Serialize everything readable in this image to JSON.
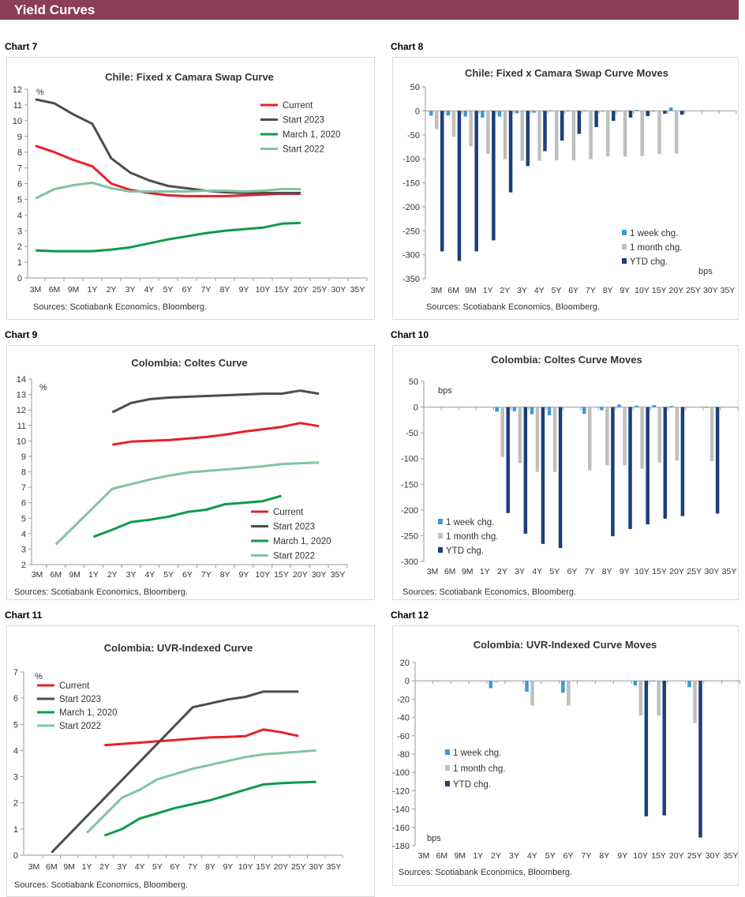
{
  "header": {
    "title": "Yield Curves"
  },
  "colors": {
    "header_bg": "#8b3f56",
    "current": "#e8202a",
    "start_2023": "#4d4d4d",
    "march_2020": "#0f9a4a",
    "start_2022": "#7fc6a0",
    "week": "#3a9bd5",
    "month": "#bfbfbf",
    "ytd": "#1c3f7a"
  },
  "chart_data": [
    {
      "label": "Chart 7",
      "title": "Chile: Fixed x Camara Swap Curve",
      "type": "line",
      "ylabel": "%",
      "source": "Sources: Scotiabank Economics, Bloomberg.",
      "ylim": [
        0,
        12
      ],
      "yticks": [
        0,
        1,
        2,
        3,
        4,
        5,
        6,
        7,
        8,
        9,
        10,
        11,
        12
      ],
      "legend": "top-right",
      "grid": false,
      "categories": [
        "3M",
        "6M",
        "9M",
        "1Y",
        "2Y",
        "3Y",
        "4Y",
        "5Y",
        "6Y",
        "7Y",
        "8Y",
        "9Y",
        "10Y",
        "15Y",
        "20Y",
        "25Y",
        "30Y",
        "35Y"
      ],
      "series": [
        {
          "name": "Current",
          "color": "#e8202a",
          "values": [
            8.4,
            8.0,
            7.5,
            7.1,
            6.0,
            5.6,
            5.4,
            5.25,
            5.2,
            5.2,
            5.2,
            5.25,
            5.3,
            5.35,
            5.35,
            null,
            null,
            null
          ]
        },
        {
          "name": "Start 2023",
          "color": "#4d4d4d",
          "values": [
            11.35,
            11.1,
            10.4,
            9.8,
            7.6,
            6.7,
            6.2,
            5.85,
            5.7,
            5.55,
            5.45,
            5.4,
            5.4,
            5.4,
            5.4,
            null,
            null,
            null
          ]
        },
        {
          "name": "March 1, 2020",
          "color": "#0f9a4a",
          "values": [
            1.75,
            1.7,
            1.7,
            1.7,
            1.8,
            1.95,
            2.2,
            2.45,
            2.65,
            2.85,
            3.0,
            3.1,
            3.2,
            3.45,
            3.5,
            null,
            null,
            null
          ]
        },
        {
          "name": "Start 2022",
          "color": "#7fc6a0",
          "values": [
            5.05,
            5.65,
            5.9,
            6.05,
            5.7,
            5.5,
            5.5,
            5.5,
            5.5,
            5.55,
            5.55,
            5.5,
            5.55,
            5.65,
            5.65,
            null,
            null,
            null
          ]
        }
      ]
    },
    {
      "label": "Chart 8",
      "title": "Chile: Fixed x Camara Swap Curve Moves",
      "type": "bar",
      "ylabel": "bps",
      "source": "Sources: Scotiabank Economics, Bloomberg.",
      "ylim": [
        -350,
        50
      ],
      "yticks": [
        50,
        0,
        -50,
        -100,
        -150,
        -200,
        -250,
        -300,
        -350
      ],
      "legend": "bottom-right",
      "grid": false,
      "categories": [
        "3M",
        "6M",
        "9M",
        "1Y",
        "2Y",
        "3Y",
        "4Y",
        "5Y",
        "6Y",
        "7Y",
        "8Y",
        "9Y",
        "10Y",
        "15Y",
        "20Y",
        "25Y",
        "30Y",
        "35Y"
      ],
      "series": [
        {
          "name": "1 week chg.",
          "color": "#3a9bd5",
          "values": [
            -10,
            -10,
            -12,
            -14,
            -12,
            -5,
            -4,
            -1,
            -1,
            -1,
            0,
            0,
            2,
            0,
            7,
            null,
            null,
            null
          ]
        },
        {
          "name": "1 month chg.",
          "color": "#bfbfbf",
          "values": [
            -38,
            -54,
            -74,
            -90,
            -101,
            -104,
            -104,
            -103,
            -103,
            -101,
            -95,
            -95,
            -94,
            -90,
            -89,
            null,
            null,
            null
          ]
        },
        {
          "name": "YTD chg.",
          "color": "#1c3f7a",
          "values": [
            -293,
            -313,
            -293,
            -270,
            -170,
            -115,
            -84,
            -62,
            -48,
            -34,
            -21,
            -14,
            -11,
            -6,
            -8,
            null,
            null,
            null
          ]
        }
      ]
    },
    {
      "label": "Chart 9",
      "title": "Colombia: Coltes Curve",
      "type": "line",
      "ylabel": "%",
      "source": "Sources: Scotiabank Economics, Bloomberg.",
      "ylim": [
        2,
        14
      ],
      "yticks": [
        2,
        3,
        4,
        5,
        6,
        7,
        8,
        9,
        10,
        11,
        12,
        13,
        14
      ],
      "legend": "bottom-right",
      "grid": false,
      "categories": [
        "3M",
        "6M",
        "9M",
        "1Y",
        "2Y",
        "3Y",
        "4Y",
        "5Y",
        "6Y",
        "7Y",
        "8Y",
        "9Y",
        "10Y",
        "15Y",
        "20Y",
        "30Y",
        "35Y"
      ],
      "series": [
        {
          "name": "Current",
          "color": "#e8202a",
          "values": [
            null,
            null,
            null,
            null,
            9.75,
            9.95,
            10.0,
            10.05,
            10.15,
            10.25,
            10.4,
            10.6,
            10.75,
            10.9,
            11.15,
            10.95,
            null
          ]
        },
        {
          "name": "Start 2023",
          "color": "#4d4d4d",
          "values": [
            null,
            null,
            null,
            null,
            11.85,
            12.45,
            12.7,
            12.8,
            12.85,
            12.9,
            12.95,
            13.0,
            13.05,
            13.05,
            13.25,
            13.05,
            null
          ]
        },
        {
          "name": "March 1, 2020",
          "color": "#0f9a4a",
          "values": [
            null,
            null,
            null,
            3.8,
            4.25,
            4.75,
            4.9,
            5.1,
            5.4,
            5.55,
            5.9,
            6.0,
            6.1,
            6.45,
            null,
            null,
            null
          ]
        },
        {
          "name": "Start 2022",
          "color": "#7fc6a0",
          "values": [
            null,
            3.3,
            null,
            null,
            6.9,
            7.2,
            7.5,
            7.75,
            7.95,
            8.05,
            8.15,
            8.25,
            8.35,
            8.5,
            8.55,
            8.6,
            null
          ]
        }
      ]
    },
    {
      "label": "Chart 10",
      "title": "Colombia: Coltes Curve Moves",
      "type": "bar",
      "ylabel": "bps",
      "source": "Sources: Scotiabank Economics, Bloomberg.",
      "ylim": [
        -300,
        50
      ],
      "yticks": [
        50,
        0,
        -50,
        -100,
        -150,
        -200,
        -250,
        -300
      ],
      "legend": "bottom-left",
      "grid": false,
      "categories": [
        "3M",
        "6M",
        "9M",
        "1Y",
        "2Y",
        "3Y",
        "4Y",
        "5Y",
        "6Y",
        "7Y",
        "8Y",
        "9Y",
        "10Y",
        "15Y",
        "20Y",
        "25Y",
        "30Y",
        "35Y"
      ],
      "series": [
        {
          "name": "1 week chg.",
          "color": "#3a9bd5",
          "values": [
            null,
            null,
            null,
            null,
            -9,
            -8,
            -14,
            -16,
            null,
            -13,
            -6,
            5,
            3,
            4,
            2,
            null,
            0,
            null
          ]
        },
        {
          "name": "1 month chg.",
          "color": "#bfbfbf",
          "values": [
            null,
            null,
            null,
            null,
            -97,
            -109,
            -126,
            -126,
            null,
            -123,
            -113,
            -113,
            -120,
            -108,
            -104,
            null,
            -105,
            null
          ]
        },
        {
          "name": "YTD chg.",
          "color": "#1c3f7a",
          "values": [
            null,
            null,
            null,
            null,
            -206,
            -246,
            -266,
            -274,
            null,
            null,
            -251,
            -237,
            -228,
            -217,
            -212,
            null,
            -207,
            null
          ]
        }
      ]
    },
    {
      "label": "Chart 11",
      "title": "Colombia: UVR-Indexed Curve",
      "type": "line",
      "ylabel": "%",
      "source": "Sources: Scotiabank Economics, Bloomberg.",
      "ylim": [
        0,
        7
      ],
      "yticks": [
        0,
        1,
        2,
        3,
        4,
        5,
        6,
        7
      ],
      "legend": "top-left",
      "grid": false,
      "categories": [
        "3M",
        "6M",
        "9M",
        "1Y",
        "2Y",
        "3Y",
        "4Y",
        "5Y",
        "6Y",
        "7Y",
        "8Y",
        "9Y",
        "10Y",
        "15Y",
        "20Y",
        "25Y",
        "30Y",
        "35Y"
      ],
      "series": [
        {
          "name": "Current",
          "color": "#e8202a",
          "values": [
            null,
            null,
            null,
            null,
            4.2,
            4.25,
            4.3,
            4.35,
            4.4,
            4.45,
            4.5,
            4.52,
            4.55,
            4.8,
            4.7,
            4.55,
            null,
            null
          ]
        },
        {
          "name": "Start 2023",
          "color": "#4d4d4d",
          "values": [
            null,
            0.1,
            null,
            null,
            null,
            null,
            null,
            null,
            null,
            5.65,
            5.8,
            5.95,
            6.05,
            6.25,
            6.25,
            6.25,
            null,
            null
          ]
        },
        {
          "name": "March 1, 2020",
          "color": "#0f9a4a",
          "values": [
            null,
            null,
            null,
            null,
            0.75,
            1.0,
            1.4,
            1.6,
            1.8,
            1.95,
            2.1,
            2.3,
            2.5,
            2.7,
            2.75,
            2.78,
            2.8,
            null
          ]
        },
        {
          "name": "Start 2022",
          "color": "#7fc6a0",
          "values": [
            null,
            null,
            null,
            0.85,
            null,
            2.2,
            2.5,
            2.9,
            3.1,
            3.3,
            3.45,
            3.6,
            3.75,
            3.85,
            3.9,
            3.95,
            4.0,
            null
          ]
        }
      ]
    },
    {
      "label": "Chart 12",
      "title": "Colombia: UVR-Indexed Curve Moves",
      "type": "bar",
      "ylabel": "bps",
      "source": "Sources: Scotiabank Economics, Bloomberg.",
      "ylim": [
        -180,
        20
      ],
      "yticks": [
        20,
        0,
        -20,
        -40,
        -60,
        -80,
        -100,
        -120,
        -140,
        -160,
        -180
      ],
      "legend": "middle-left",
      "grid": false,
      "categories": [
        "3M",
        "6M",
        "9M",
        "1Y",
        "2Y",
        "3Y",
        "4Y",
        "5Y",
        "6Y",
        "7Y",
        "8Y",
        "9Y",
        "10Y",
        "15Y",
        "20Y",
        "25Y",
        "30Y",
        "35Y"
      ],
      "series": [
        {
          "name": "1 week chg.",
          "color": "#3a9bd5",
          "values": [
            null,
            null,
            null,
            null,
            -8,
            null,
            -12,
            null,
            -13,
            null,
            null,
            null,
            -5,
            0,
            null,
            -7,
            null,
            null
          ]
        },
        {
          "name": "1 month chg.",
          "color": "#bfbfbf",
          "values": [
            null,
            null,
            null,
            null,
            -2,
            null,
            -27,
            null,
            -27,
            null,
            null,
            null,
            -38,
            -38,
            null,
            -46,
            null,
            null
          ]
        },
        {
          "name": "YTD chg.",
          "color": "#1c3f7a",
          "values": [
            null,
            null,
            null,
            null,
            null,
            null,
            null,
            null,
            null,
            null,
            null,
            null,
            -148,
            -147,
            null,
            -171,
            null,
            null
          ]
        }
      ]
    }
  ]
}
